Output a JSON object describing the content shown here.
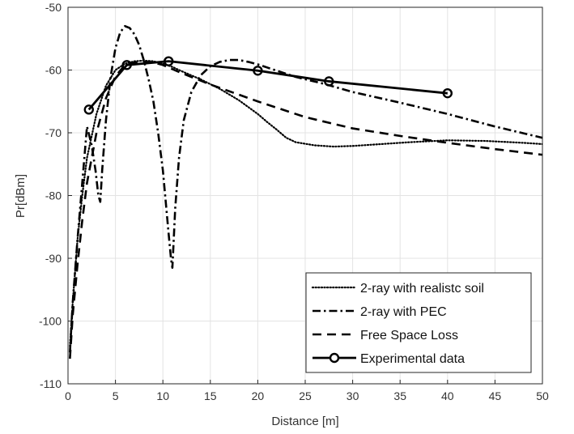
{
  "chart_data": {
    "type": "line",
    "title": "",
    "xlabel": "Distance [m]",
    "ylabel": "Pr[dBm]",
    "xlim": [
      0,
      50
    ],
    "ylim": [
      -110,
      -50
    ],
    "xticks": [
      0,
      5,
      10,
      15,
      20,
      25,
      30,
      35,
      40,
      45,
      50
    ],
    "yticks": [
      -110,
      -100,
      -90,
      -80,
      -70,
      -60,
      -50
    ],
    "xtick_labels": [
      "0",
      "5",
      "10",
      "15",
      "20",
      "25",
      "30",
      "35",
      "40",
      "45",
      "50"
    ],
    "ytick_labels": [
      "-110",
      "-100",
      "-90",
      "-80",
      "-70",
      "-60",
      "-50"
    ],
    "grid": true,
    "legend_position": "bottom-right",
    "series": [
      {
        "name": "2-ray with realistc soil",
        "style": "dotted",
        "color": "#000000",
        "x": [
          0.2,
          0.5,
          1,
          1.5,
          2,
          3,
          4,
          5,
          6,
          7,
          8,
          9,
          10,
          11,
          12,
          14,
          16,
          18,
          20,
          21,
          22,
          23,
          24,
          26,
          28,
          30,
          33,
          36,
          40,
          44,
          48,
          50
        ],
        "y": [
          -104,
          -97,
          -87,
          -80,
          -74,
          -67,
          -62.5,
          -60,
          -59,
          -58.6,
          -58.5,
          -58.6,
          -59,
          -59.5,
          -60.2,
          -61.5,
          -63,
          -64.8,
          -67,
          -68.3,
          -69.5,
          -70.8,
          -71.5,
          -72,
          -72.2,
          -72.1,
          -71.8,
          -71.5,
          -71.2,
          -71.3,
          -71.6,
          -71.8
        ]
      },
      {
        "name": "2-ray with PEC",
        "style": "dashdot",
        "color": "#000000",
        "x": [
          0.2,
          0.5,
          1,
          1.5,
          2,
          2.5,
          2.9,
          3.2,
          3.4,
          3.6,
          4,
          4.5,
          5,
          5.5,
          6,
          6.5,
          7,
          7.5,
          8,
          8.5,
          9,
          9.5,
          10,
          10.3,
          10.6,
          10.85,
          11,
          11.3,
          11.7,
          12.2,
          13,
          14,
          15,
          16,
          17,
          18,
          19,
          20,
          22,
          24,
          27,
          30,
          35,
          40,
          45,
          50
        ],
        "y": [
          -105,
          -97,
          -87,
          -78,
          -69,
          -72,
          -76,
          -80,
          -81,
          -76,
          -68,
          -61,
          -56.5,
          -54,
          -53,
          -53.3,
          -54.3,
          -56,
          -58.5,
          -61.5,
          -65,
          -70,
          -76,
          -81,
          -86,
          -90,
          -91.5,
          -82,
          -74,
          -68,
          -63.5,
          -60.8,
          -59.4,
          -58.7,
          -58.4,
          -58.4,
          -58.7,
          -59.1,
          -60.1,
          -61.1,
          -62.2,
          -63.5,
          -65.2,
          -67,
          -69,
          -70.8
        ]
      },
      {
        "name": "Free Space Loss",
        "style": "dashed",
        "color": "#000000",
        "x": [
          0.2,
          0.5,
          1,
          1.5,
          2,
          3,
          4,
          5,
          6,
          7,
          8,
          9,
          10,
          12,
          15,
          20,
          25,
          30,
          35,
          40,
          45,
          50
        ],
        "y": [
          -106,
          -99,
          -91,
          -84,
          -78,
          -70,
          -64.5,
          -61,
          -59.2,
          -58.8,
          -58.7,
          -58.8,
          -59.2,
          -60.5,
          -62.3,
          -65,
          -67.5,
          -69.3,
          -70.5,
          -71.6,
          -72.6,
          -73.5
        ]
      },
      {
        "name": "Experimental data",
        "style": "solid-marker",
        "color": "#000000",
        "x": [
          2.2,
          6.2,
          10.6,
          20,
          27.5,
          40
        ],
        "y": [
          -66.3,
          -59.2,
          -58.6,
          -60.1,
          -61.8,
          -63.7
        ]
      }
    ]
  }
}
